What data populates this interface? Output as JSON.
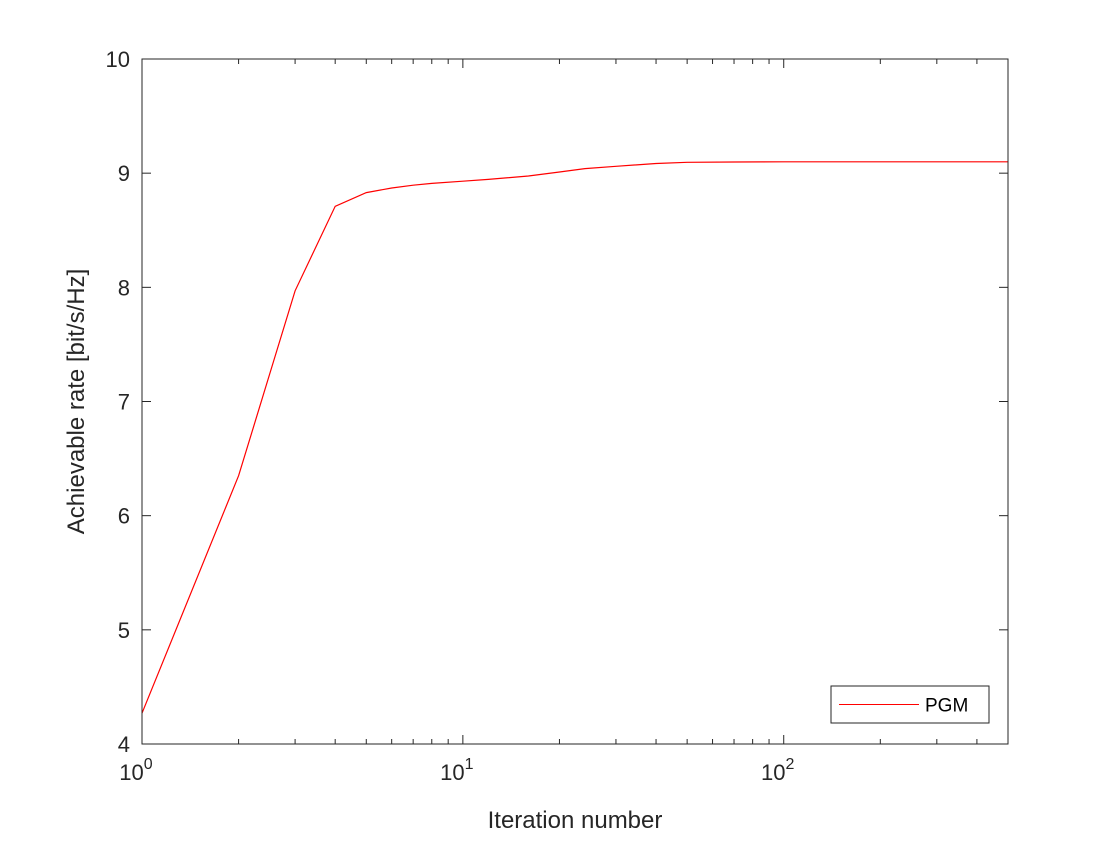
{
  "chart_data": {
    "type": "line",
    "title": "",
    "xlabel": "Iteration number",
    "ylabel": "Achievable rate [bit/s/Hz]",
    "xscale": "log",
    "xlim": [
      1,
      500
    ],
    "ylim": [
      4,
      10
    ],
    "x_ticks": [
      1,
      10,
      100
    ],
    "x_tick_labels": [
      {
        "base": "10",
        "exp": "0"
      },
      {
        "base": "10",
        "exp": "1"
      },
      {
        "base": "10",
        "exp": "2"
      }
    ],
    "y_ticks": [
      4,
      5,
      6,
      7,
      8,
      9,
      10
    ],
    "y_tick_labels": [
      "4",
      "5",
      "6",
      "7",
      "8",
      "9",
      "10"
    ],
    "grid": false,
    "legend_position": "bottom-right",
    "series": [
      {
        "name": "PGM",
        "color": "#ff0000",
        "x": [
          1,
          2,
          3,
          4,
          5,
          6,
          7,
          8,
          10,
          12,
          16,
          20,
          24,
          30,
          40,
          50,
          70,
          100,
          200,
          500
        ],
        "y": [
          4.27,
          6.35,
          7.97,
          8.71,
          8.83,
          8.87,
          8.895,
          8.91,
          8.93,
          8.945,
          8.975,
          9.01,
          9.04,
          9.06,
          9.085,
          9.095,
          9.098,
          9.1,
          9.1,
          9.1
        ]
      }
    ]
  }
}
